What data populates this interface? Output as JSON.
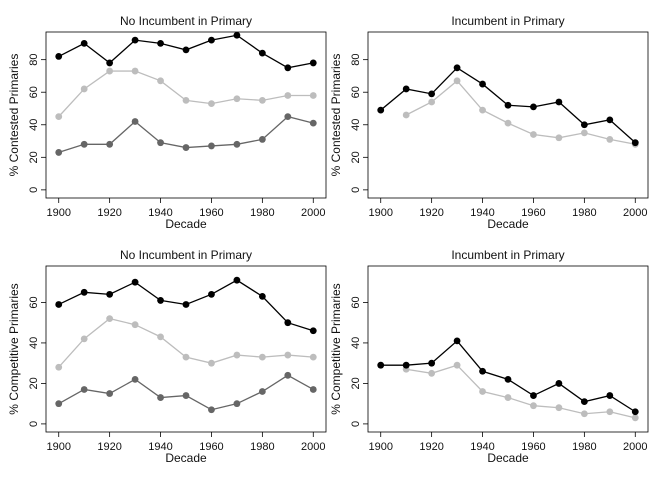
{
  "chart_data": [
    {
      "type": "line",
      "title": "No Incumbent in Primary",
      "xlabel": "Decade",
      "ylabel": "% Contested Primaries",
      "x": [
        1900,
        1910,
        1920,
        1930,
        1940,
        1950,
        1960,
        1970,
        1980,
        1990,
        2000
      ],
      "xticks": [
        1900,
        1920,
        1940,
        1960,
        1980,
        2000
      ],
      "yticks": [
        0,
        20,
        40,
        60,
        80
      ],
      "xlim": [
        1895,
        2005
      ],
      "ylim": [
        -5,
        97
      ],
      "grid": false,
      "series": [
        {
          "color": "#000000",
          "values": [
            82,
            90,
            78,
            92,
            90,
            86,
            92,
            95,
            84,
            75,
            78
          ]
        },
        {
          "color": "#bdbdbd",
          "values": [
            45,
            62,
            73,
            73,
            67,
            55,
            53,
            56,
            55,
            58,
            58
          ]
        },
        {
          "color": "#666666",
          "values": [
            23,
            28,
            28,
            42,
            29,
            26,
            27,
            28,
            31,
            45,
            41
          ]
        }
      ]
    },
    {
      "type": "line",
      "title": "Incumbent in Primary",
      "xlabel": "Decade",
      "ylabel": "% Contested Primaries",
      "x": [
        1900,
        1910,
        1920,
        1930,
        1940,
        1950,
        1960,
        1970,
        1980,
        1990,
        2000
      ],
      "xticks": [
        1900,
        1920,
        1940,
        1960,
        1980,
        2000
      ],
      "yticks": [
        0,
        20,
        40,
        60,
        80
      ],
      "xlim": [
        1895,
        2005
      ],
      "ylim": [
        -5,
        97
      ],
      "grid": false,
      "series": [
        {
          "color": "#000000",
          "values": [
            49,
            62,
            59,
            75,
            65,
            52,
            51,
            54,
            40,
            43,
            29
          ]
        },
        {
          "color": "#bdbdbd",
          "values": [
            null,
            46,
            54,
            67,
            49,
            41,
            34,
            32,
            35,
            31,
            28
          ]
        }
      ]
    },
    {
      "type": "line",
      "title": "No Incumbent in Primary",
      "xlabel": "Decade",
      "ylabel": "% Competitive Primaries",
      "x": [
        1900,
        1910,
        1920,
        1930,
        1940,
        1950,
        1960,
        1970,
        1980,
        1990,
        2000
      ],
      "xticks": [
        1900,
        1920,
        1940,
        1960,
        1980,
        2000
      ],
      "yticks": [
        0,
        20,
        40,
        60
      ],
      "xlim": [
        1895,
        2005
      ],
      "ylim": [
        -4,
        78
      ],
      "grid": false,
      "series": [
        {
          "color": "#000000",
          "values": [
            59,
            65,
            64,
            70,
            61,
            59,
            64,
            71,
            63,
            50,
            46
          ]
        },
        {
          "color": "#bdbdbd",
          "values": [
            28,
            42,
            52,
            49,
            43,
            33,
            30,
            34,
            33,
            34,
            33
          ]
        },
        {
          "color": "#666666",
          "values": [
            10,
            17,
            15,
            22,
            13,
            14,
            7,
            10,
            16,
            24,
            17
          ]
        }
      ]
    },
    {
      "type": "line",
      "title": "Incumbent in Primary",
      "xlabel": "Decade",
      "ylabel": "% Competitive Primaries",
      "x": [
        1900,
        1910,
        1920,
        1930,
        1940,
        1950,
        1960,
        1970,
        1980,
        1990,
        2000
      ],
      "xticks": [
        1900,
        1920,
        1940,
        1960,
        1980,
        2000
      ],
      "yticks": [
        0,
        20,
        40,
        60
      ],
      "xlim": [
        1895,
        2005
      ],
      "ylim": [
        -4,
        78
      ],
      "grid": false,
      "series": [
        {
          "color": "#000000",
          "values": [
            29,
            29,
            30,
            41,
            26,
            22,
            14,
            20,
            11,
            14,
            6
          ]
        },
        {
          "color": "#bdbdbd",
          "values": [
            null,
            27,
            25,
            29,
            16,
            13,
            9,
            8,
            5,
            6,
            3
          ]
        }
      ]
    }
  ]
}
